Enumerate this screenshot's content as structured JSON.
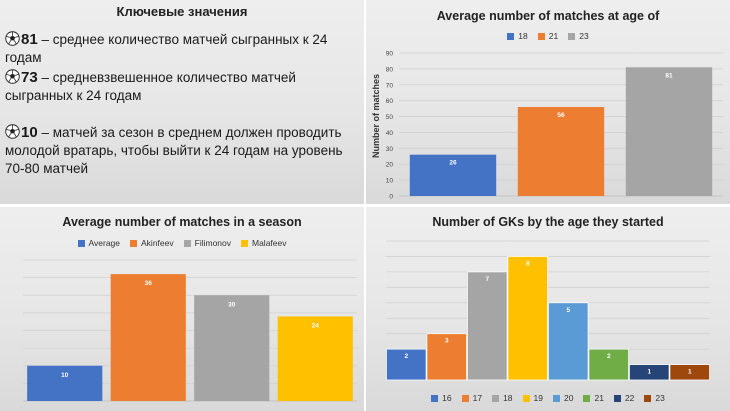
{
  "key_facts": {
    "title": "Ключевые значения",
    "items": [
      {
        "icon": "soccer-ball-icon",
        "number": "81",
        "text": " – среднее количество матчей сыгранных к 24 годам"
      },
      {
        "icon": "soccer-ball-icon",
        "number": "73",
        "text": " – средневзвешенное количество матчей сыгранных к 24 годам"
      },
      {
        "icon": "soccer-ball-icon",
        "number": "10",
        "text": " – матчей за сезон в среднем должен проводить молодой вратарь, чтобы выйти к 24 годам на уровень 70-80 матчей"
      }
    ]
  },
  "chart_data": [
    {
      "id": "age",
      "type": "bar",
      "title": "Average number of matches at age of",
      "legend_position": "top",
      "xlabel": "",
      "ylabel": "Number of matches",
      "ylim": [
        0,
        90
      ],
      "yticks": [
        0,
        10,
        20,
        30,
        40,
        50,
        60,
        70,
        80,
        90
      ],
      "grid": true,
      "categories": [
        "18",
        "21",
        "23"
      ],
      "values": [
        26,
        56,
        81
      ],
      "colors": [
        "#4472c4",
        "#ed7d31",
        "#a5a5a5"
      ]
    },
    {
      "id": "season",
      "type": "bar",
      "title": "Average number of matches in a season",
      "legend_position": "top",
      "xlabel": "",
      "ylabel": "",
      "ylim": [
        0,
        40
      ],
      "grid": true,
      "categories": [
        "Average",
        "Akinfeev",
        "Filimonov",
        "Malafeev"
      ],
      "values": [
        10,
        36,
        30,
        24
      ],
      "colors": [
        "#4472c4",
        "#ed7d31",
        "#a5a5a5",
        "#ffc000"
      ]
    },
    {
      "id": "gk",
      "type": "bar",
      "title": "Number of GKs by the age they started",
      "legend_position": "bottom",
      "xlabel": "",
      "ylabel": "",
      "ylim": [
        0,
        9
      ],
      "grid": true,
      "categories": [
        "16",
        "17",
        "18",
        "19",
        "20",
        "21",
        "22",
        "23"
      ],
      "values": [
        2,
        3,
        7,
        8,
        5,
        2,
        1,
        1
      ],
      "colors": [
        "#4472c4",
        "#ed7d31",
        "#a5a5a5",
        "#ffc000",
        "#5b9bd5",
        "#70ad47",
        "#264478",
        "#9e480e"
      ]
    }
  ]
}
